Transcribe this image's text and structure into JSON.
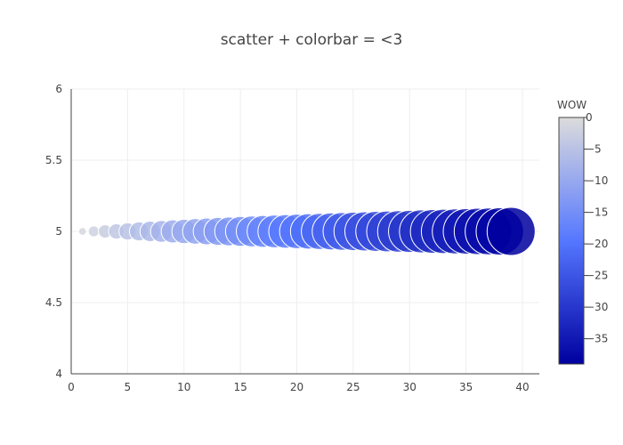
{
  "chart_data": {
    "type": "scatter",
    "title": "scatter + colorbar = <3",
    "x": [
      1,
      2,
      3,
      4,
      5,
      6,
      7,
      8,
      9,
      10,
      11,
      12,
      13,
      14,
      15,
      16,
      17,
      18,
      19,
      20,
      21,
      22,
      23,
      24,
      25,
      26,
      27,
      28,
      29,
      30,
      31,
      32,
      33,
      34,
      35,
      36,
      37,
      38,
      39
    ],
    "y": [
      5,
      5,
      5,
      5,
      5,
      5,
      5,
      5,
      5,
      5,
      5,
      5,
      5,
      5,
      5,
      5,
      5,
      5,
      5,
      5,
      5,
      5,
      5,
      5,
      5,
      5,
      5,
      5,
      5,
      5,
      5,
      5,
      5,
      5,
      5,
      5,
      5,
      5,
      5
    ],
    "color_values": [
      -1,
      -2,
      -3,
      -4,
      -5,
      -6,
      -7,
      -8,
      -9,
      -10,
      -11,
      -12,
      -13,
      -14,
      -15,
      -16,
      -17,
      -18,
      -19,
      -20,
      -21,
      -22,
      -23,
      -24,
      -25,
      -26,
      -27,
      -28,
      -29,
      -30,
      -31,
      -32,
      -33,
      -34,
      -35,
      -36,
      -37,
      -38,
      -39
    ],
    "size_values": [
      1,
      2,
      3,
      4,
      5,
      6,
      7,
      8,
      9,
      10,
      11,
      12,
      13,
      14,
      15,
      16,
      17,
      18,
      19,
      20,
      21,
      22,
      23,
      24,
      25,
      26,
      27,
      28,
      29,
      30,
      31,
      32,
      33,
      34,
      35,
      36,
      37,
      38,
      39
    ],
    "xlim": [
      0,
      41.5
    ],
    "ylim": [
      4,
      6
    ],
    "xticks": [
      0,
      5,
      10,
      15,
      20,
      25,
      30,
      35,
      40
    ],
    "xtick_labels": [
      "0",
      "5",
      "10",
      "15",
      "20",
      "25",
      "30",
      "35",
      "40"
    ],
    "yticks": [
      4,
      4.5,
      5,
      5.5,
      6
    ],
    "ytick_labels": [
      "4",
      "4.5",
      "5",
      "5.5",
      "6"
    ],
    "grid": true,
    "colorbar": {
      "title": "WOW",
      "range": [
        -39,
        0
      ],
      "ticks": [
        0,
        -5,
        -10,
        -15,
        -20,
        -25,
        -30,
        -35
      ],
      "tick_labels": [
        "0",
        "−5",
        "−10",
        "−15",
        "−20",
        "−25",
        "−30",
        "−35"
      ],
      "colorscale": [
        "#00009f",
        "#5577ff",
        "#dcdcdc"
      ]
    },
    "colors": {
      "grid": "#eeeeee",
      "axis": "#444444",
      "marker_outline": "#ffffff"
    }
  }
}
